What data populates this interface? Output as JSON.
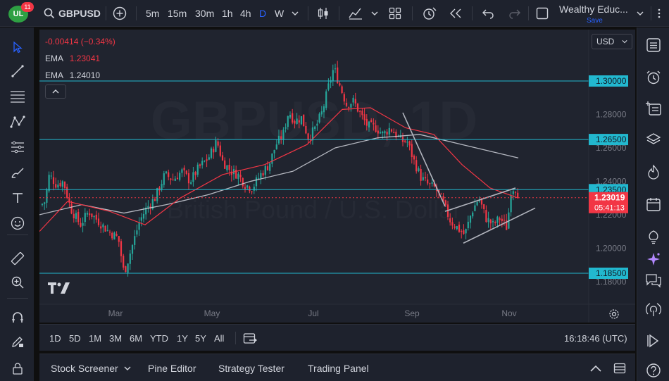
{
  "header": {
    "badge_count": "11",
    "symbol": "GBPUSD",
    "timeframes": [
      "5m",
      "15m",
      "30m",
      "1h",
      "4h",
      "D",
      "W"
    ],
    "active_timeframe": "D",
    "layout_name": "Wealthy Educ...",
    "save_label": "Save"
  },
  "chart": {
    "currency_label": "USD",
    "change_text": "-0.00414 (−0.34%)",
    "ema1_label": "EMA",
    "ema1_value": "1.23041",
    "ema2_label": "EMA",
    "ema2_value": "1.24010",
    "watermark_symbol": "GBPUSD, 1D",
    "watermark_name": "British Pound / U.S. Dollar",
    "price_ticks": [
      "1.28000",
      "1.26000",
      "1.24000",
      "1.22000",
      "1.20000",
      "1.18000"
    ],
    "level_labels": [
      "1.30000",
      "1.26500",
      "1.23500",
      "1.18500"
    ],
    "current_price": "1.23019",
    "countdown": "05:41:13",
    "months": [
      "Mar",
      "May",
      "Jul",
      "Sep",
      "Nov"
    ],
    "colors": {
      "up": "#26a69a",
      "down": "#f23645",
      "ema_fast": "#f23645",
      "ema_slow": "#d1d4dc",
      "level": "#22b8cf"
    }
  },
  "range_bar": {
    "ranges": [
      "1D",
      "5D",
      "1M",
      "3M",
      "6M",
      "YTD",
      "1Y",
      "5Y",
      "All"
    ],
    "clock": "16:18:46 (UTC)"
  },
  "panels": {
    "tabs": [
      "Stock Screener",
      "Pine Editor",
      "Strategy Tester",
      "Trading Panel"
    ]
  }
}
